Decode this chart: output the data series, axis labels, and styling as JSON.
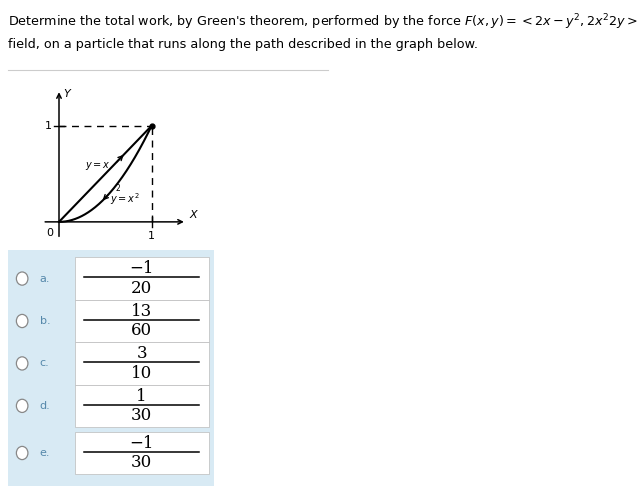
{
  "title_line1": "Determine the total work, by Green’s theorem, performed by the force $F(x, y) =\\langle 2x - y^2, 2x^2 2y \\rangle$",
  "title_line2": "field, on a particle that runs along the path described in the graph below.",
  "options": [
    {
      "label": "a.",
      "num": "−1",
      "den": "20"
    },
    {
      "label": "b.",
      "num": "13",
      "den": "60"
    },
    {
      "label": "c.",
      "num": "3",
      "den": "10"
    },
    {
      "label": "d.",
      "num": "1",
      "den": "30"
    },
    {
      "label": "e.",
      "num": "−1",
      "den": "30"
    }
  ],
  "bg_color": "#ffffff",
  "option_bg": "#d8eaf4",
  "graph_line_color": "#000000",
  "text_color": "#000000",
  "radio_color": "#888888",
  "label_color": "#5588aa"
}
